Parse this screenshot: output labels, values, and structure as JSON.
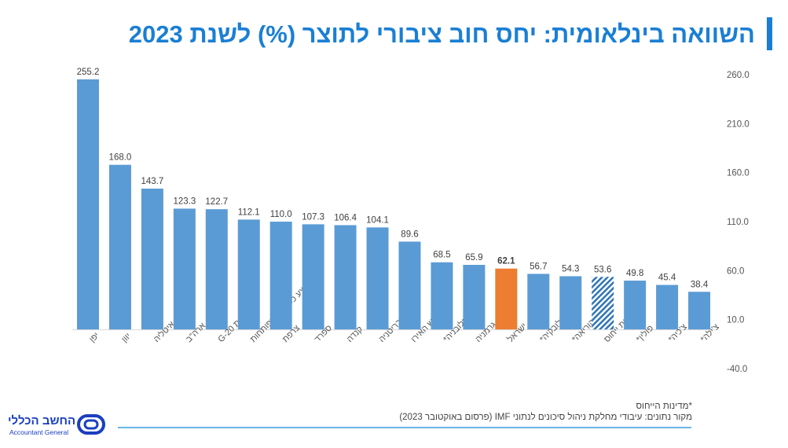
{
  "title": "השוואה בינלאומית: יחס חוב ציבורי לתוצר (%) לשנת 2023",
  "footnote": "*מדינות הייחוס",
  "source": "מקור נתונים: עיבודי מחלקת ניהול סיכונים לנתוני IMF (פרסום באוקטובר 2023)",
  "logo": {
    "he": "החשב הכללי",
    "en": "Accountant General"
  },
  "colors": {
    "bar": "#5b9bd5",
    "highlight": "#ed7d31",
    "title": "#1a7fd4"
  },
  "chart_data": {
    "type": "bar",
    "categories": [
      "יפן",
      "יוון",
      "איטליה",
      "ארה\"ב",
      "מפותחות G-20",
      "ממוצע כלכלות מפותחות",
      "צרפת",
      "ספרד",
      "קנדה",
      "בריטניה",
      "גוש האירו",
      "סלובניה*",
      "גרמניה",
      "ישראל",
      "סלובקיה*",
      "קוריאה*",
      "מדינות ייחוס",
      "פולין*",
      "צ'כיה*",
      "צ'ילה*"
    ],
    "values": [
      255.2,
      168.0,
      143.7,
      123.3,
      122.7,
      112.1,
      110.0,
      107.3,
      106.4,
      104.1,
      89.6,
      68.5,
      65.9,
      62.1,
      56.7,
      54.3,
      53.6,
      49.8,
      45.4,
      38.4
    ],
    "highlight": "ישראל",
    "hatched": "מדינות ייחוס",
    "ylim": [
      -40,
      260
    ],
    "yticks": [
      "260.0",
      "210.0",
      "160.0",
      "110.0",
      "60.0",
      "10.0",
      "-40.0"
    ],
    "axis_side": "right",
    "grid": false,
    "data_labels": true
  }
}
